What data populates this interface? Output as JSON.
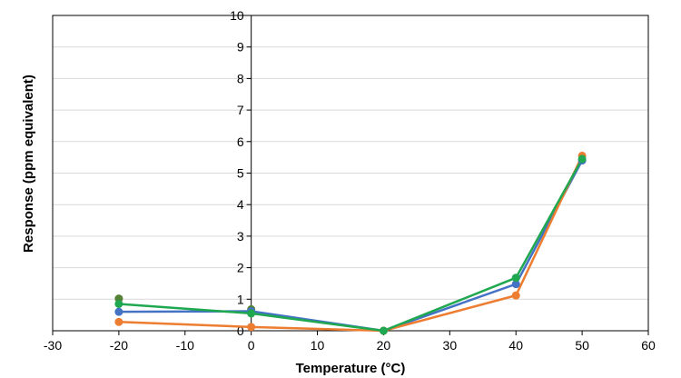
{
  "chart_data": {
    "type": "line",
    "xlabel": "Temperature (°C)",
    "ylabel": "Response (ppm equivalent)",
    "xlim": [
      -30,
      60
    ],
    "ylim": [
      0,
      10
    ],
    "xticks": [
      -30,
      -20,
      -10,
      0,
      10,
      20,
      30,
      40,
      50,
      60
    ],
    "yticks": [
      0,
      1,
      2,
      3,
      4,
      5,
      6,
      7,
      8,
      9,
      10
    ],
    "grid": "horizontal",
    "x": [
      -20,
      0,
      20,
      40,
      50
    ],
    "series": [
      {
        "color": "#4472c4",
        "values": [
          0.6,
          0.62,
          0.0,
          1.48,
          5.4
        ]
      },
      {
        "color": "#ed7d31",
        "values": [
          0.28,
          0.12,
          0.0,
          1.12,
          5.55
        ]
      },
      {
        "color": "#1fa84f",
        "values": [
          0.85,
          0.55,
          0.0,
          1.68,
          5.45
        ]
      }
    ],
    "extra_points": [
      {
        "x": -20,
        "y": 1.02,
        "color": "#548235"
      },
      {
        "x": 0,
        "y": 0.68,
        "color": "#548235"
      }
    ]
  }
}
